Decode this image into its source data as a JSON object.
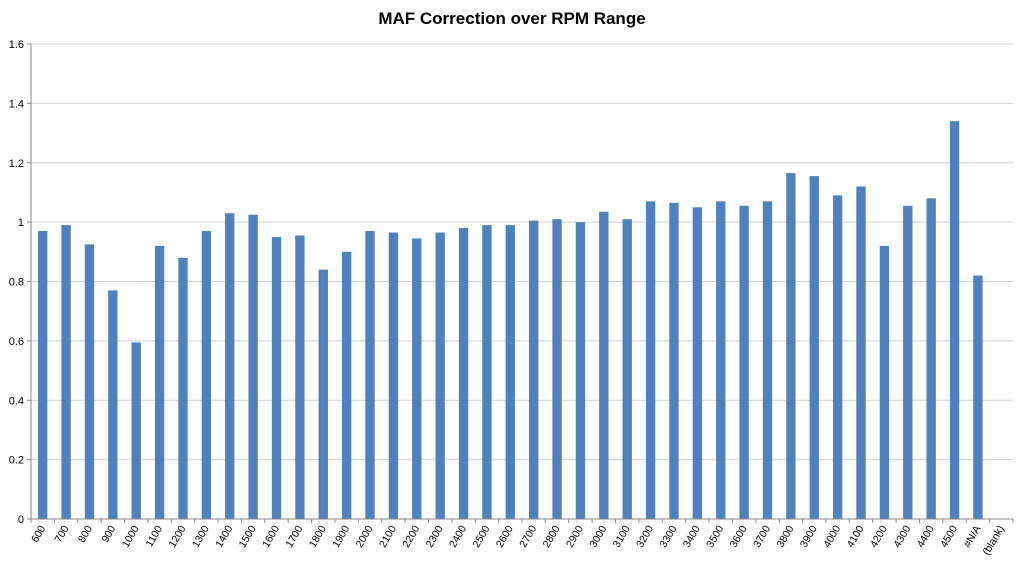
{
  "chart_data": {
    "type": "bar",
    "title": "MAF Correction over RPM Range",
    "xlabel": "",
    "ylabel": "",
    "ylim": [
      0,
      1.6
    ],
    "yticks": [
      "0",
      "0.2",
      "0.4",
      "0.6",
      "0.8",
      "1",
      "1.2",
      "1.4",
      "1.6"
    ],
    "grid": "horizontal",
    "legend": "none",
    "bar_color": "#4f81bd",
    "categories": [
      "600",
      "700",
      "800",
      "900",
      "1000",
      "1100",
      "1200",
      "1300",
      "1400",
      "1500",
      "1600",
      "1700",
      "1800",
      "1900",
      "2000",
      "2100",
      "2200",
      "2300",
      "2400",
      "2500",
      "2600",
      "2700",
      "2800",
      "2900",
      "3000",
      "3100",
      "3200",
      "3300",
      "3400",
      "3500",
      "3600",
      "3700",
      "3800",
      "3900",
      "4000",
      "4100",
      "4200",
      "4300",
      "4400",
      "4500",
      "#N/A",
      "(blank)"
    ],
    "values": [
      0.97,
      0.99,
      0.925,
      0.77,
      0.595,
      0.92,
      0.88,
      0.97,
      1.03,
      1.025,
      0.95,
      0.955,
      0.84,
      0.9,
      0.97,
      0.965,
      0.945,
      0.965,
      0.98,
      0.99,
      0.99,
      1.005,
      1.01,
      1.0,
      1.035,
      1.01,
      1.07,
      1.065,
      1.05,
      1.07,
      1.055,
      1.07,
      1.165,
      1.155,
      1.09,
      1.12,
      0.92,
      1.055,
      1.08,
      1.34,
      0.82,
      null
    ]
  }
}
